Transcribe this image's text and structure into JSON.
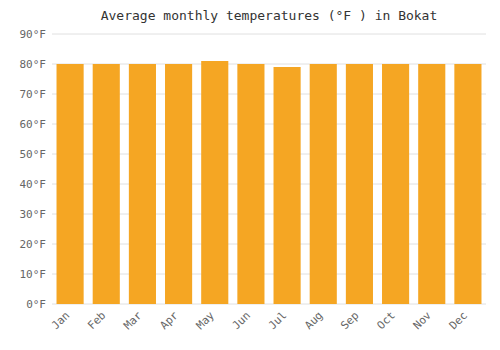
{
  "chart_data": {
    "type": "bar",
    "title": "Average monthly temperatures (°F ) in Bokat",
    "categories": [
      "Jan",
      "Feb",
      "Mar",
      "Apr",
      "May",
      "Jun",
      "Jul",
      "Aug",
      "Sep",
      "Oct",
      "Nov",
      "Dec"
    ],
    "values": [
      80,
      80,
      80,
      80,
      81,
      80,
      79,
      80,
      80,
      80,
      80,
      80
    ],
    "color": "#F5A623",
    "ylim": [
      0,
      90
    ],
    "yticks": [
      {
        "value": 0,
        "label": "0°F"
      },
      {
        "value": 10,
        "label": "10°F"
      },
      {
        "value": 20,
        "label": "20°F"
      },
      {
        "value": 30,
        "label": "30°F"
      },
      {
        "value": 40,
        "label": "40°F"
      },
      {
        "value": 50,
        "label": "50°F"
      },
      {
        "value": 60,
        "label": "60°F"
      },
      {
        "value": 70,
        "label": "70°F"
      },
      {
        "value": 80,
        "label": "80°F"
      },
      {
        "value": 90,
        "label": "90°F"
      }
    ],
    "grid": true
  }
}
